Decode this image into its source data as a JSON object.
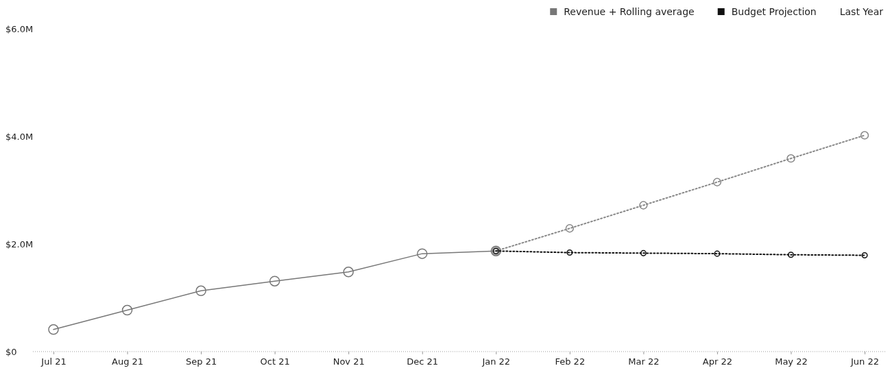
{
  "chart_data": {
    "type": "line",
    "categories": [
      "Jul 21",
      "Aug 21",
      "Sep 21",
      "Oct 21",
      "Nov 21",
      "Dec 21",
      "Jan 22",
      "Feb 22",
      "Mar 22",
      "Apr 22",
      "May 22",
      "Jun 22"
    ],
    "series": [
      {
        "name": "Revenue + Rolling average",
        "color": "#777777",
        "line_style": "solid",
        "values": [
          0.41,
          0.77,
          1.13,
          1.31,
          1.48,
          1.82,
          1.87,
          null,
          null,
          null,
          null,
          null
        ]
      },
      {
        "color": "#888888",
        "line_style": "dotted",
        "values": [
          null,
          null,
          null,
          null,
          null,
          null,
          1.87,
          2.29,
          2.72,
          3.15,
          3.59,
          4.02
        ]
      },
      {
        "name": "Budget Projection",
        "color": "#111111",
        "line_style": "dotted",
        "values": [
          null,
          null,
          null,
          null,
          null,
          null,
          1.87,
          1.84,
          1.83,
          1.82,
          1.8,
          1.79
        ]
      }
    ],
    "ylim": [
      0,
      6
    ],
    "yticks": [
      {
        "value": 0,
        "label": "$0"
      },
      {
        "value": 2,
        "label": "$2.0M"
      },
      {
        "value": 4,
        "label": "$4.0M"
      },
      {
        "value": 6,
        "label": "$6.0M"
      }
    ],
    "annotations": [
      "Last Year"
    ],
    "legend": "top right",
    "marker": "circle",
    "grid": false
  }
}
